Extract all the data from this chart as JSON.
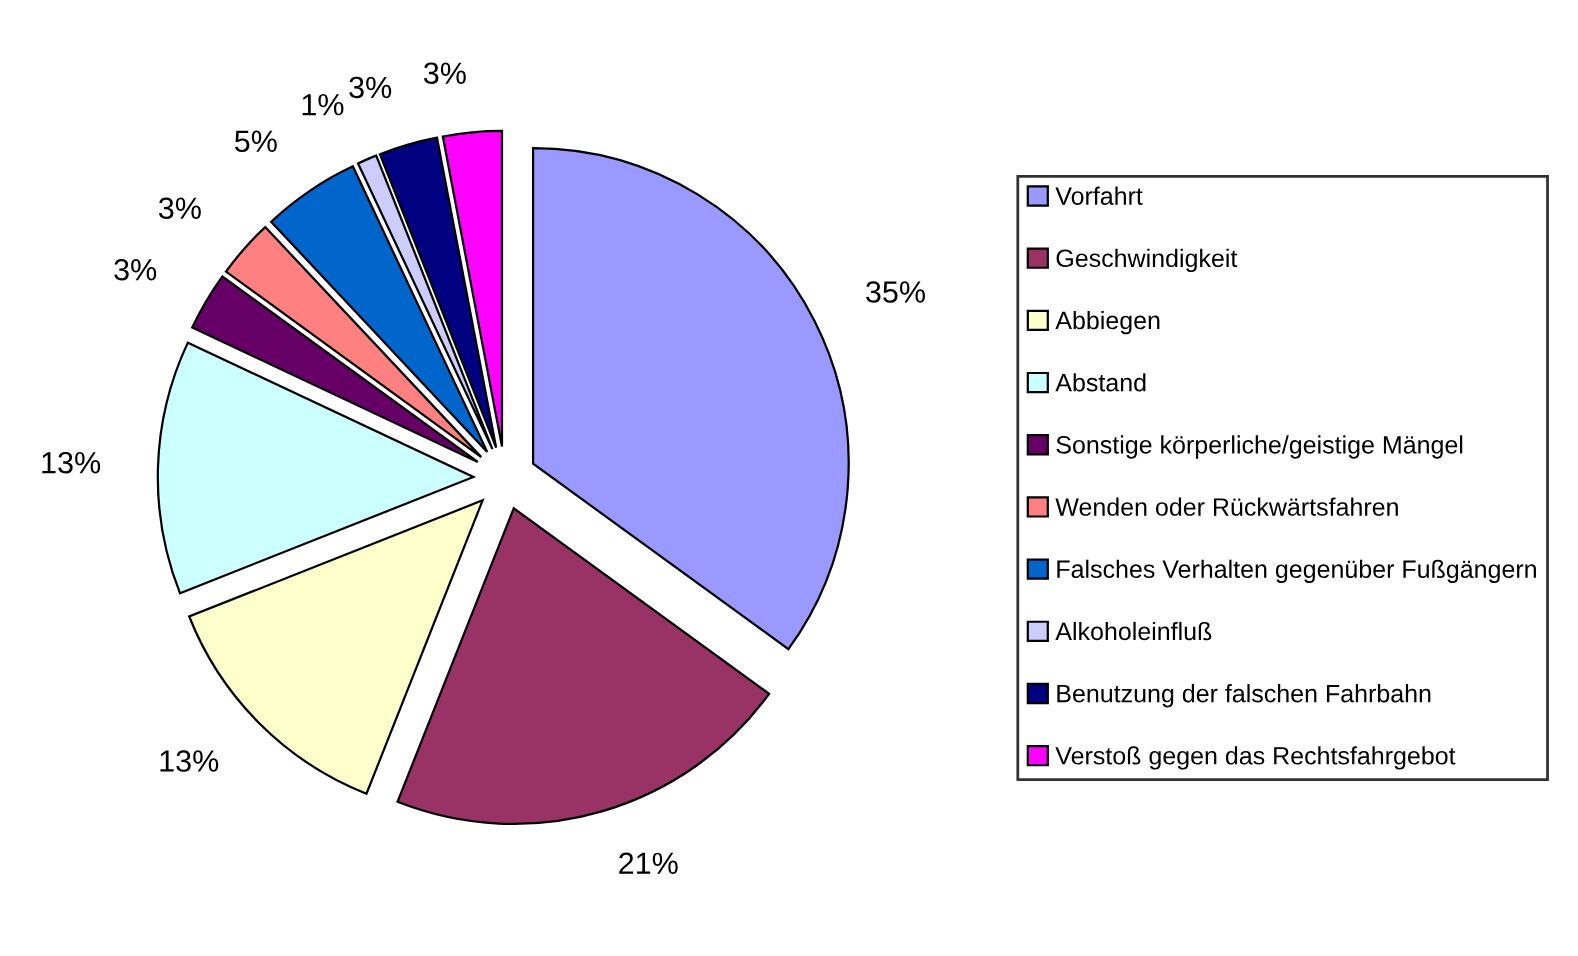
{
  "chart_data": {
    "type": "pie",
    "categories": [
      "Vorfahrt",
      "Geschwindigkeit",
      "Abbiegen",
      "Abstand",
      "Sonstige körperliche/geistige Mängel",
      "Wenden oder Rückwärtsfahren",
      "Falsches Verhalten gegenüber Fußgängern",
      "Alkoholeinfluß",
      "Benutzung der falschen Fahrbahn",
      "Verstoß gegen das Rechtsfahrgebot"
    ],
    "values": [
      35,
      21,
      13,
      13,
      3,
      3,
      5,
      1,
      3,
      3
    ],
    "value_labels": [
      "35%",
      "21%",
      "13%",
      "13%",
      "3%",
      "3%",
      "5%",
      "1%",
      "3%",
      "3%"
    ],
    "colors": [
      "#9999ff",
      "#993366",
      "#ffffcc",
      "#ccffff",
      "#660066",
      "#ff8080",
      "#0066cc",
      "#ccccff",
      "#000080",
      "#ff00ff"
    ],
    "legend": "right"
  }
}
